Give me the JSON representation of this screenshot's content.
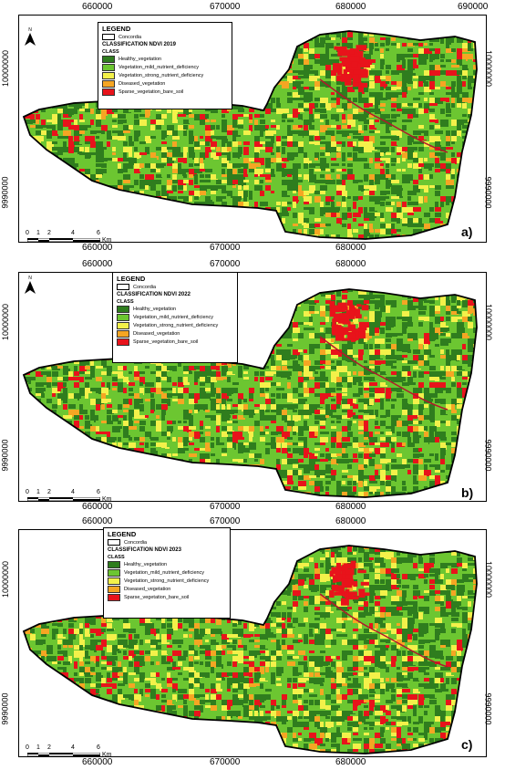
{
  "x_ticks": [
    "660000",
    "670000",
    "680000",
    "690000"
  ],
  "x_ticks_bottom": [
    "660000",
    "670000",
    "680000"
  ],
  "y_ticks": [
    "10000000",
    "9990000"
  ],
  "panels": [
    {
      "label": "a)",
      "legend": {
        "title": "LEGEND",
        "boundary": "Concordia",
        "classification": "CLASSIFICATION NDVI 2019",
        "class_title": "CLASS"
      }
    },
    {
      "label": "b)",
      "legend": {
        "title": "LEGEND",
        "boundary": "Concordia",
        "classification": "CLASSIFICATION NDVI 2022",
        "class_title": "CLASS"
      }
    },
    {
      "label": "c)",
      "legend": {
        "title": "LEGEND",
        "boundary": "Concordia",
        "classification": "CLASSIFICATION NDVI 2023",
        "class_title": "CLASS"
      }
    }
  ],
  "classes": [
    {
      "name": "Healthy_vegetation",
      "color": "#2f7d1e"
    },
    {
      "name": "Vegetation_mild_nutrient_deficiency",
      "color": "#6cc631"
    },
    {
      "name": "Vegetation_strong_nutrient_deficiency",
      "color": "#f3f14a"
    },
    {
      "name": "Diseased_vegetation",
      "color": "#f5a623"
    },
    {
      "name": "Sparse_vegetation_bare_soil",
      "color": "#e8131b"
    }
  ],
  "north_label": "N",
  "scale_bar": {
    "labels": [
      "0",
      "1",
      "2",
      "4",
      "6"
    ],
    "unit": "Km"
  }
}
